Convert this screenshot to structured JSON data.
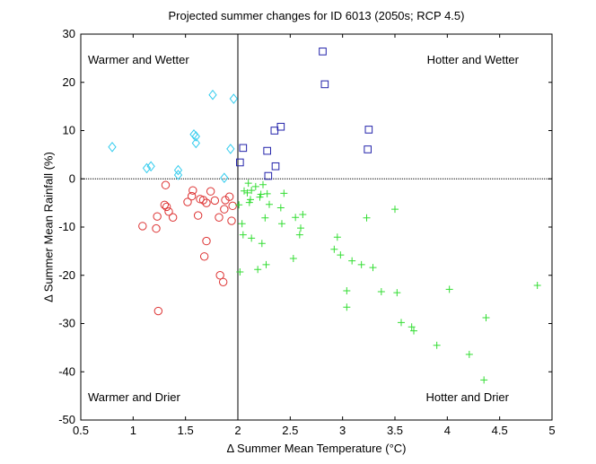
{
  "chart_data": {
    "type": "scatter",
    "title": "Projected summer changes for ID 6013 (2050s; RCP 4.5)",
    "xlabel": "Δ Summer Mean Temperature (°C)",
    "ylabel": "Δ Summer Mean Rainfall (%)",
    "xlim": [
      0.5,
      5
    ],
    "ylim": [
      -50,
      30
    ],
    "xticks": [
      "0.5",
      "1",
      "1.5",
      "2",
      "2.5",
      "3",
      "3.5",
      "4",
      "4.5",
      "5"
    ],
    "yticks": [
      "-50",
      "-40",
      "-30",
      "-20",
      "-10",
      "0",
      "10",
      "20",
      "30"
    ],
    "grid": false,
    "reference_lines": {
      "x": 2,
      "y": 0
    },
    "quadrant_labels": {
      "top_left": "Warmer and Wetter",
      "top_right": "Hotter and Wetter",
      "bottom_left": "Warmer and Drier",
      "bottom_right": "Hotter and Drier"
    },
    "series": [
      {
        "marker": "diamond",
        "color": "#33ccee",
        "points": [
          [
            0.8,
            6.6
          ],
          [
            1.13,
            2.2
          ],
          [
            1.17,
            2.6
          ],
          [
            1.43,
            1.8
          ],
          [
            1.43,
            0.8
          ],
          [
            1.58,
            9.2
          ],
          [
            1.6,
            8.8
          ],
          [
            1.6,
            7.4
          ],
          [
            1.76,
            17.4
          ],
          [
            1.87,
            0.2
          ],
          [
            1.93,
            6.2
          ],
          [
            1.96,
            16.6
          ]
        ]
      },
      {
        "marker": "square",
        "color": "#2222aa",
        "points": [
          [
            2.02,
            3.4
          ],
          [
            2.05,
            6.4
          ],
          [
            2.28,
            5.8
          ],
          [
            2.29,
            0.6
          ],
          [
            2.35,
            10.0
          ],
          [
            2.36,
            2.6
          ],
          [
            2.41,
            10.8
          ],
          [
            2.81,
            26.4
          ],
          [
            2.83,
            19.6
          ],
          [
            3.24,
            6.1
          ],
          [
            3.25,
            10.2
          ]
        ]
      },
      {
        "marker": "circle",
        "color": "#dd3333",
        "points": [
          [
            1.09,
            -9.8
          ],
          [
            1.22,
            -10.3
          ],
          [
            1.23,
            -7.8
          ],
          [
            1.24,
            -27.4
          ],
          [
            1.3,
            -5.4
          ],
          [
            1.31,
            -1.3
          ],
          [
            1.32,
            -5.8
          ],
          [
            1.34,
            -6.8
          ],
          [
            1.38,
            -8.0
          ],
          [
            1.52,
            -4.8
          ],
          [
            1.56,
            -3.6
          ],
          [
            1.57,
            -2.4
          ],
          [
            1.62,
            -7.6
          ],
          [
            1.64,
            -4.2
          ],
          [
            1.67,
            -4.4
          ],
          [
            1.68,
            -16.1
          ],
          [
            1.7,
            -5.0
          ],
          [
            1.7,
            -12.9
          ],
          [
            1.74,
            -2.6
          ],
          [
            1.78,
            -4.5
          ],
          [
            1.82,
            -8.0
          ],
          [
            1.83,
            -20.0
          ],
          [
            1.86,
            -21.4
          ],
          [
            1.87,
            -6.3
          ],
          [
            1.88,
            -4.4
          ],
          [
            1.92,
            -3.7
          ],
          [
            1.94,
            -8.7
          ],
          [
            1.95,
            -5.6
          ]
        ]
      },
      {
        "marker": "plus",
        "color": "#33dd33",
        "points": [
          [
            2.01,
            -5.4
          ],
          [
            2.02,
            -19.3
          ],
          [
            2.04,
            -9.3
          ],
          [
            2.05,
            -11.6
          ],
          [
            2.06,
            -2.5
          ],
          [
            2.09,
            -2.9
          ],
          [
            2.1,
            -0.9
          ],
          [
            2.11,
            -4.9
          ],
          [
            2.12,
            -4.3
          ],
          [
            2.13,
            -2.4
          ],
          [
            2.13,
            -12.3
          ],
          [
            2.17,
            -1.6
          ],
          [
            2.19,
            -18.8
          ],
          [
            2.21,
            -3.8
          ],
          [
            2.22,
            -3.2
          ],
          [
            2.23,
            -13.4
          ],
          [
            2.24,
            -1.2
          ],
          [
            2.26,
            -8.1
          ],
          [
            2.27,
            -17.8
          ],
          [
            2.28,
            -3.1
          ],
          [
            2.3,
            -5.3
          ],
          [
            2.41,
            -6.0
          ],
          [
            2.42,
            -9.3
          ],
          [
            2.44,
            -3.0
          ],
          [
            2.53,
            -16.5
          ],
          [
            2.55,
            -8.0
          ],
          [
            2.59,
            -11.6
          ],
          [
            2.6,
            -10.2
          ],
          [
            2.62,
            -7.4
          ],
          [
            2.92,
            -14.6
          ],
          [
            2.95,
            -12.1
          ],
          [
            2.98,
            -15.8
          ],
          [
            3.04,
            -23.2
          ],
          [
            3.04,
            -26.6
          ],
          [
            3.09,
            -17.0
          ],
          [
            3.18,
            -17.8
          ],
          [
            3.23,
            -8.1
          ],
          [
            3.29,
            -18.4
          ],
          [
            3.37,
            -23.4
          ],
          [
            3.5,
            -6.3
          ],
          [
            3.52,
            -23.6
          ],
          [
            3.56,
            -29.8
          ],
          [
            3.66,
            -30.7
          ],
          [
            3.68,
            -31.5
          ],
          [
            3.9,
            -34.5
          ],
          [
            4.02,
            -22.9
          ],
          [
            4.21,
            -36.4
          ],
          [
            4.35,
            -41.7
          ],
          [
            4.37,
            -28.8
          ],
          [
            4.86,
            -22.1
          ]
        ]
      }
    ]
  }
}
